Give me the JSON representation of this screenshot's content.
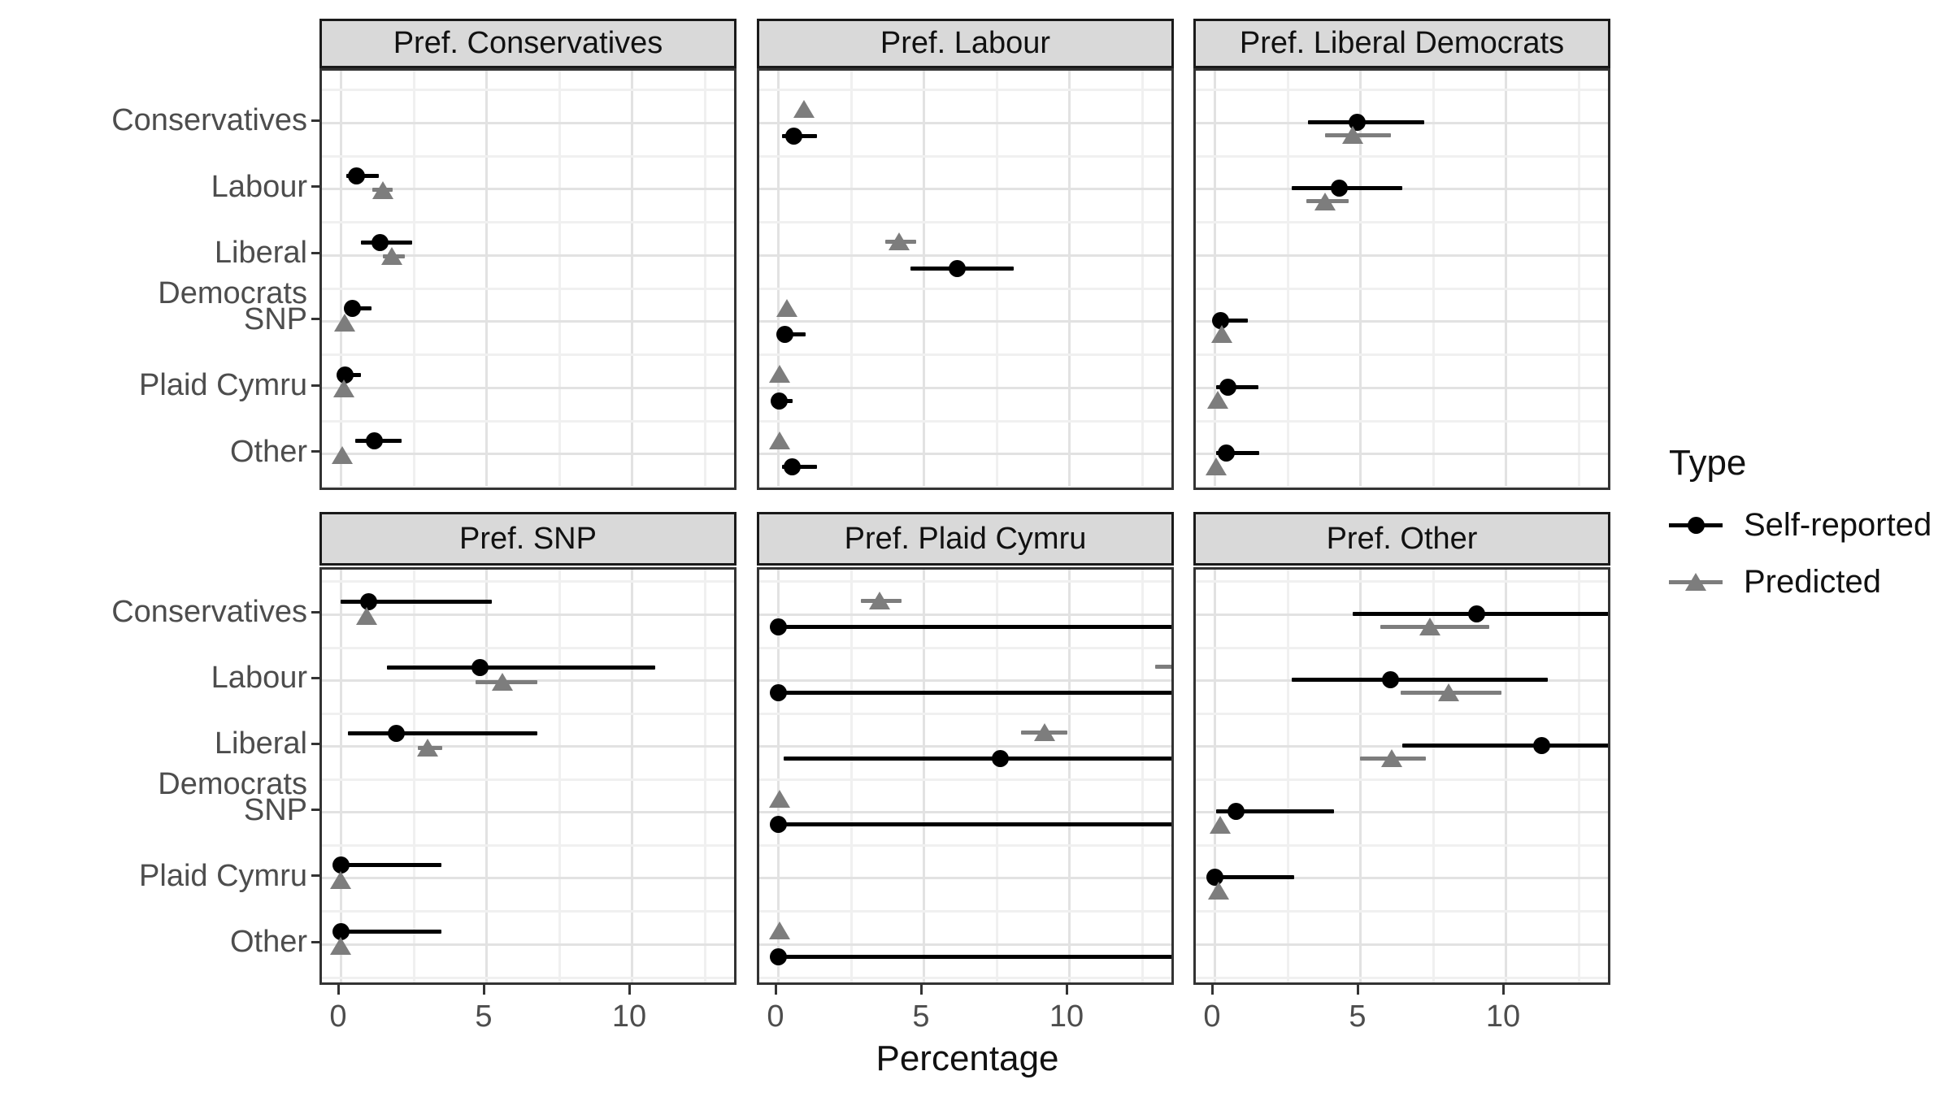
{
  "chart_data": {
    "type": "scatter",
    "title": "",
    "xlabel": "Percentage",
    "ylabel": "",
    "x_ticks": [
      "0",
      "5",
      "10"
    ],
    "x_tick_values": [
      0,
      5,
      10
    ],
    "x_minor_values": [
      2.5,
      7.5,
      12.5
    ],
    "x_range": [
      -0.65,
      13.75
    ],
    "grid": "on",
    "legend_position": "right",
    "row_categories": [
      "Conservatives",
      "Labour",
      "Liberal Democrats",
      "SNP",
      "Plaid Cymru",
      "Other"
    ],
    "colors": {
      "self": "#000000",
      "pred": "#7d7d7d"
    },
    "legend": {
      "title": "Type",
      "entries": [
        {
          "label": "Self-reported",
          "marker": "circle",
          "color": "#000000"
        },
        {
          "label": "Predicted",
          "marker": "triangle",
          "color": "#7d7d7d"
        }
      ]
    },
    "facets": [
      {
        "title": "Pref. Conservatives",
        "dodge": {
          "self": -16,
          "pred": 1
        },
        "points": [
          {
            "row": "Labour",
            "type": "self",
            "x": 0.55,
            "lo": 0.2,
            "hi": 1.3
          },
          {
            "row": "Labour",
            "type": "pred",
            "x": 1.45,
            "lo": 1.1,
            "hi": 1.8
          },
          {
            "row": "Liberal Democrats",
            "type": "self",
            "x": 1.35,
            "lo": 0.7,
            "hi": 2.45
          },
          {
            "row": "Liberal Democrats",
            "type": "pred",
            "x": 1.75,
            "lo": 1.45,
            "hi": 2.2
          },
          {
            "row": "SNP",
            "type": "self",
            "x": 0.4,
            "lo": 0.2,
            "hi": 1.05
          },
          {
            "row": "SNP",
            "type": "pred",
            "x": 0.15,
            "lo": 0.15,
            "hi": 0.15
          },
          {
            "row": "Plaid Cymru",
            "type": "self",
            "x": 0.15,
            "lo": 0.0,
            "hi": 0.7
          },
          {
            "row": "Plaid Cymru",
            "type": "pred",
            "x": 0.1,
            "lo": 0.1,
            "hi": 0.1
          },
          {
            "row": "Other",
            "type": "self",
            "x": 1.15,
            "lo": 0.5,
            "hi": 2.1
          },
          {
            "row": "Other",
            "type": "pred",
            "x": 0.05,
            "lo": 0.05,
            "hi": 0.05
          }
        ]
      },
      {
        "title": "Pref. Labour",
        "dodge": {
          "self": 16,
          "pred": -17
        },
        "points": [
          {
            "row": "Conservatives",
            "type": "self",
            "x": 0.55,
            "lo": 0.15,
            "hi": 1.35
          },
          {
            "row": "Conservatives",
            "type": "pred",
            "x": 0.9,
            "lo": 0.9,
            "hi": 0.9
          },
          {
            "row": "Liberal Democrats",
            "type": "self",
            "x": 6.15,
            "lo": 4.55,
            "hi": 8.1
          },
          {
            "row": "Liberal Democrats",
            "type": "pred",
            "x": 4.15,
            "lo": 3.7,
            "hi": 4.75
          },
          {
            "row": "SNP",
            "type": "self",
            "x": 0.25,
            "lo": 0.0,
            "hi": 0.95
          },
          {
            "row": "SNP",
            "type": "pred",
            "x": 0.3,
            "lo": 0.3,
            "hi": 0.3
          },
          {
            "row": "Plaid Cymru",
            "type": "self",
            "x": 0.05,
            "lo": 0.0,
            "hi": 0.5
          },
          {
            "row": "Plaid Cymru",
            "type": "pred",
            "x": 0.05,
            "lo": 0.05,
            "hi": 0.05
          },
          {
            "row": "Other",
            "type": "self",
            "x": 0.5,
            "lo": 0.15,
            "hi": 1.35
          },
          {
            "row": "Other",
            "type": "pred",
            "x": 0.05,
            "lo": 0.05,
            "hi": 0.05
          }
        ]
      },
      {
        "title": "Pref. Liberal Democrats",
        "dodge": {
          "self": -1,
          "pred": 15
        },
        "points": [
          {
            "row": "Conservatives",
            "type": "self",
            "x": 4.9,
            "lo": 3.2,
            "hi": 7.2
          },
          {
            "row": "Conservatives",
            "type": "pred",
            "x": 4.75,
            "lo": 3.8,
            "hi": 6.05
          },
          {
            "row": "Labour",
            "type": "self",
            "x": 4.3,
            "lo": 2.65,
            "hi": 6.45
          },
          {
            "row": "Labour",
            "type": "pred",
            "x": 3.8,
            "lo": 3.15,
            "hi": 4.6
          },
          {
            "row": "SNP",
            "type": "self",
            "x": 0.2,
            "lo": 0.0,
            "hi": 1.15
          },
          {
            "row": "SNP",
            "type": "pred",
            "x": 0.25,
            "lo": 0.25,
            "hi": 0.25
          },
          {
            "row": "Plaid Cymru",
            "type": "self",
            "x": 0.45,
            "lo": 0.05,
            "hi": 1.5
          },
          {
            "row": "Plaid Cymru",
            "type": "pred",
            "x": 0.1,
            "lo": 0.1,
            "hi": 0.1
          },
          {
            "row": "Other",
            "type": "self",
            "x": 0.4,
            "lo": 0.05,
            "hi": 1.55
          },
          {
            "row": "Other",
            "type": "pred",
            "x": 0.05,
            "lo": 0.05,
            "hi": 0.05
          }
        ]
      },
      {
        "title": "Pref. SNP",
        "dodge": {
          "self": -16,
          "pred": 2
        },
        "points": [
          {
            "row": "Conservatives",
            "type": "self",
            "x": 0.95,
            "lo": 0.0,
            "hi": 5.2
          },
          {
            "row": "Conservatives",
            "type": "pred",
            "x": 0.9,
            "lo": 0.9,
            "hi": 0.9
          },
          {
            "row": "Labour",
            "type": "self",
            "x": 4.8,
            "lo": 1.6,
            "hi": 10.8
          },
          {
            "row": "Labour",
            "type": "pred",
            "x": 5.55,
            "lo": 4.65,
            "hi": 6.75
          },
          {
            "row": "Liberal Democrats",
            "type": "self",
            "x": 1.9,
            "lo": 0.25,
            "hi": 6.75
          },
          {
            "row": "Liberal Democrats",
            "type": "pred",
            "x": 3.0,
            "lo": 2.65,
            "hi": 3.5
          },
          {
            "row": "Plaid Cymru",
            "type": "self",
            "x": 0.0,
            "lo": 0.0,
            "hi": 3.45
          },
          {
            "row": "Plaid Cymru",
            "type": "pred",
            "x": 0.0,
            "lo": 0.0,
            "hi": 0.0
          },
          {
            "row": "Other",
            "type": "self",
            "x": 0.0,
            "lo": 0.0,
            "hi": 3.45
          },
          {
            "row": "Other",
            "type": "pred",
            "x": 0.0,
            "lo": 0.0,
            "hi": 0.0
          }
        ]
      },
      {
        "title": "Pref. Plaid Cymru",
        "dodge": {
          "self": 15,
          "pred": -17
        },
        "points": [
          {
            "row": "Conservatives",
            "type": "self",
            "x": 0.0,
            "lo": 0.0,
            "hi": 13.9
          },
          {
            "row": "Conservatives",
            "type": "pred",
            "x": 3.5,
            "lo": 2.85,
            "hi": 4.25
          },
          {
            "row": "Labour",
            "type": "self",
            "x": 0.0,
            "lo": 0.0,
            "hi": 13.9
          },
          {
            "row": "Labour",
            "type": "pred",
            "x": 14.2,
            "lo": 12.95,
            "hi": 14.3
          },
          {
            "row": "Liberal Democrats",
            "type": "self",
            "x": 7.65,
            "lo": 0.2,
            "hi": 13.9
          },
          {
            "row": "Liberal Democrats",
            "type": "pred",
            "x": 9.15,
            "lo": 8.35,
            "hi": 9.95
          },
          {
            "row": "SNP",
            "type": "self",
            "x": 0.0,
            "lo": 0.0,
            "hi": 13.9
          },
          {
            "row": "SNP",
            "type": "pred",
            "x": 0.05,
            "lo": 0.05,
            "hi": 0.05
          },
          {
            "row": "Other",
            "type": "self",
            "x": 0.0,
            "lo": 0.0,
            "hi": 13.9
          },
          {
            "row": "Other",
            "type": "pred",
            "x": 0.05,
            "lo": 0.05,
            "hi": 0.05
          }
        ]
      },
      {
        "title": "Pref. Other",
        "dodge": {
          "self": -1,
          "pred": 15
        },
        "points": [
          {
            "row": "Conservatives",
            "type": "self",
            "x": 9.0,
            "lo": 4.75,
            "hi": 13.6
          },
          {
            "row": "Conservatives",
            "type": "pred",
            "x": 7.4,
            "lo": 5.7,
            "hi": 9.45
          },
          {
            "row": "Labour",
            "type": "self",
            "x": 6.05,
            "lo": 2.65,
            "hi": 11.45
          },
          {
            "row": "Labour",
            "type": "pred",
            "x": 8.05,
            "lo": 6.4,
            "hi": 9.85
          },
          {
            "row": "Liberal Democrats",
            "type": "self",
            "x": 11.25,
            "lo": 6.45,
            "hi": 13.9
          },
          {
            "row": "Liberal Democrats",
            "type": "pred",
            "x": 6.1,
            "lo": 5.0,
            "hi": 7.25
          },
          {
            "row": "SNP",
            "type": "self",
            "x": 0.75,
            "lo": 0.05,
            "hi": 4.1
          },
          {
            "row": "SNP",
            "type": "pred",
            "x": 0.2,
            "lo": 0.2,
            "hi": 0.2
          },
          {
            "row": "Plaid Cymru",
            "type": "self",
            "x": 0.0,
            "lo": 0.0,
            "hi": 2.75
          },
          {
            "row": "Plaid Cymru",
            "type": "pred",
            "x": 0.15,
            "lo": 0.15,
            "hi": 0.15
          }
        ]
      }
    ]
  }
}
